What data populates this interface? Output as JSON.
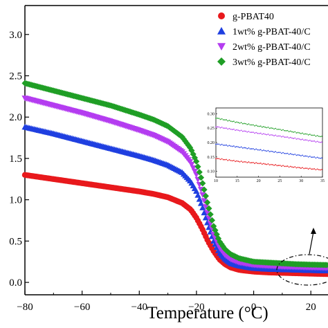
{
  "chart_data": {
    "type": "line",
    "xlabel": "Temperature (°C)",
    "ylabel": "",
    "xlim": [
      -80,
      26
    ],
    "ylim": [
      -0.15,
      3.35
    ],
    "xticks": [
      "−80",
      "−60",
      "−40",
      "−20",
      "0",
      "20"
    ],
    "yticks": [
      "0.0",
      "0.5",
      "1.0",
      "1.5",
      "2.0",
      "2.5",
      "3.0"
    ],
    "legend_position": "top-right",
    "series": [
      {
        "name": "g-PBAT40",
        "color": "#e8191c",
        "marker": "circle",
        "x": [
          -80,
          -70,
          -60,
          -50,
          -40,
          -35,
          -30,
          -25,
          -22,
          -20,
          -18,
          -16,
          -14,
          -12,
          -10,
          -8,
          -5,
          0,
          5,
          10,
          15,
          20,
          26
        ],
        "y": [
          1.3,
          1.25,
          1.2,
          1.15,
          1.1,
          1.07,
          1.03,
          0.96,
          0.88,
          0.78,
          0.65,
          0.5,
          0.38,
          0.28,
          0.22,
          0.18,
          0.15,
          0.13,
          0.12,
          0.115,
          0.11,
          0.105,
          0.1
        ]
      },
      {
        "name": "1wt% g-PBAT-40/C",
        "color": "#1f3fe0",
        "marker": "triangle",
        "x": [
          -80,
          -70,
          -60,
          -50,
          -40,
          -35,
          -30,
          -25,
          -22,
          -20,
          -18,
          -16,
          -14,
          -12,
          -10,
          -8,
          -5,
          0,
          5,
          10,
          15,
          20,
          26
        ],
        "y": [
          1.88,
          1.8,
          1.71,
          1.62,
          1.53,
          1.48,
          1.42,
          1.33,
          1.22,
          1.1,
          0.92,
          0.7,
          0.5,
          0.36,
          0.28,
          0.23,
          0.2,
          0.17,
          0.16,
          0.155,
          0.15,
          0.145,
          0.14
        ]
      },
      {
        "name": "2wt% g-PBAT-40/C",
        "color": "#b43cf0",
        "marker": "triangle-down",
        "x": [
          -80,
          -70,
          -60,
          -50,
          -40,
          -35,
          -30,
          -25,
          -22,
          -20,
          -18,
          -16,
          -14,
          -12,
          -10,
          -8,
          -5,
          0,
          5,
          10,
          15,
          20,
          26
        ],
        "y": [
          2.23,
          2.14,
          2.05,
          1.95,
          1.84,
          1.78,
          1.7,
          1.58,
          1.45,
          1.3,
          1.08,
          0.82,
          0.58,
          0.42,
          0.33,
          0.28,
          0.24,
          0.21,
          0.2,
          0.19,
          0.185,
          0.18,
          0.175
        ]
      },
      {
        "name": "3wt% g-PBAT-40/C",
        "color": "#1f9e25",
        "marker": "diamond",
        "x": [
          -80,
          -70,
          -60,
          -50,
          -40,
          -35,
          -30,
          -25,
          -22,
          -20,
          -18,
          -16,
          -14,
          -12,
          -10,
          -8,
          -5,
          0,
          5,
          10,
          15,
          20,
          26
        ],
        "y": [
          2.41,
          2.32,
          2.23,
          2.14,
          2.03,
          1.97,
          1.89,
          1.76,
          1.62,
          1.46,
          1.22,
          0.94,
          0.68,
          0.5,
          0.4,
          0.34,
          0.29,
          0.25,
          0.24,
          0.23,
          0.22,
          0.215,
          0.21
        ]
      }
    ],
    "inset": {
      "xlim": [
        10,
        35
      ],
      "ylim": [
        0.08,
        0.32
      ],
      "xticks": [
        "10",
        "15",
        "20",
        "25",
        "30",
        "35"
      ],
      "yticks": [
        "0.10",
        "0.15",
        "0.20",
        "0.25",
        "0.30"
      ],
      "series": [
        {
          "x": [
            10,
            15,
            20,
            25,
            30,
            35
          ],
          "y": [
            0.145,
            0.135,
            0.128,
            0.12,
            0.112,
            0.105
          ]
        },
        {
          "x": [
            10,
            15,
            20,
            25,
            30,
            35
          ],
          "y": [
            0.195,
            0.185,
            0.175,
            0.165,
            0.155,
            0.145
          ]
        },
        {
          "x": [
            10,
            15,
            20,
            25,
            30,
            35
          ],
          "y": [
            0.255,
            0.243,
            0.232,
            0.222,
            0.211,
            0.2
          ]
        },
        {
          "x": [
            10,
            15,
            20,
            25,
            30,
            35
          ],
          "y": [
            0.285,
            0.27,
            0.257,
            0.245,
            0.232,
            0.22
          ]
        }
      ]
    }
  }
}
